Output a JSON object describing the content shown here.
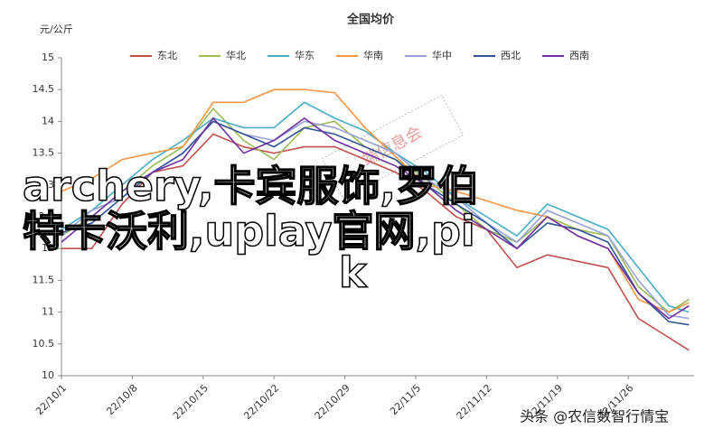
{
  "chart_data": {
    "type": "line",
    "title": "全国均价",
    "y_label": "元/公斤",
    "x": [
      0,
      3,
      6,
      9,
      12,
      15,
      18,
      21,
      24,
      27,
      30,
      33,
      36,
      39,
      42,
      45,
      48,
      51,
      54,
      57,
      60,
      62
    ],
    "xlim": [
      0,
      62.5
    ],
    "xticks": [
      {
        "value": 0,
        "label": "22/10/1"
      },
      {
        "value": 7,
        "label": "22/10/8"
      },
      {
        "value": 14,
        "label": "22/10/15"
      },
      {
        "value": 21,
        "label": "22/10/22"
      },
      {
        "value": 28,
        "label": "22/10/29"
      },
      {
        "value": 35,
        "label": "22/11/5"
      },
      {
        "value": 42,
        "label": "22/11/12"
      },
      {
        "value": 49,
        "label": "22/11/19"
      },
      {
        "value": 56,
        "label": "22/11/26"
      }
    ],
    "ylim": [
      10,
      15
    ],
    "yticks": [
      10,
      10.5,
      11,
      11.5,
      12,
      12.5,
      13,
      13.5,
      14,
      14.5,
      15
    ],
    "grid": false,
    "legend": "top",
    "series": [
      {
        "name": "东北",
        "color": "#c0504d",
        "values": [
          12.0,
          12.0,
          12.7,
          13.2,
          13.3,
          13.8,
          13.6,
          13.5,
          13.6,
          13.6,
          13.4,
          13.2,
          12.9,
          12.5,
          12.3,
          11.7,
          11.9,
          11.8,
          11.7,
          10.9,
          10.6,
          10.4
        ]
      },
      {
        "name": "华北",
        "color": "#9bbb59",
        "values": [
          12.2,
          12.5,
          12.9,
          13.3,
          13.6,
          14.2,
          13.7,
          13.4,
          13.9,
          14.0,
          13.6,
          13.4,
          13.1,
          12.7,
          12.3,
          12.1,
          12.5,
          12.3,
          12.2,
          11.4,
          11.0,
          11.2
        ]
      },
      {
        "name": "华东",
        "color": "#4bacc6",
        "values": [
          12.3,
          12.6,
          13.0,
          13.4,
          13.7,
          14.05,
          13.9,
          13.9,
          14.3,
          14.05,
          13.85,
          13.5,
          13.2,
          12.8,
          12.5,
          12.2,
          12.7,
          12.5,
          12.3,
          11.7,
          11.1,
          11.0
        ]
      },
      {
        "name": "华南",
        "color": "#f79646",
        "values": [
          12.9,
          13.1,
          13.4,
          13.5,
          13.6,
          14.3,
          14.3,
          14.5,
          14.5,
          14.45,
          13.9,
          13.45,
          13.0,
          12.9,
          12.75,
          12.6,
          12.5,
          12.2,
          12.0,
          11.2,
          11.0,
          11.15
        ]
      },
      {
        "name": "华中",
        "color": "#95a3d6",
        "values": [
          12.2,
          12.6,
          12.8,
          13.2,
          13.5,
          14.0,
          13.8,
          13.7,
          14.0,
          13.9,
          13.7,
          13.5,
          13.1,
          12.8,
          12.4,
          12.1,
          12.6,
          12.4,
          12.2,
          11.5,
          10.95,
          10.9
        ]
      },
      {
        "name": "西北",
        "color": "#2f5597",
        "values": [
          12.25,
          12.4,
          12.8,
          13.2,
          13.5,
          14.0,
          13.8,
          13.6,
          13.9,
          13.8,
          13.6,
          13.4,
          13.0,
          12.7,
          12.4,
          12.0,
          12.4,
          12.3,
          12.1,
          11.3,
          10.85,
          10.8
        ]
      },
      {
        "name": "西南",
        "color": "#7030a0",
        "values": [
          12.1,
          12.5,
          12.9,
          13.2,
          13.4,
          14.05,
          13.5,
          13.7,
          14.05,
          13.7,
          13.5,
          13.3,
          13.0,
          12.6,
          12.3,
          12.0,
          12.5,
          12.2,
          12.0,
          11.3,
          10.9,
          11.1
        ]
      }
    ]
  },
  "stamp": "端信息会",
  "overlay": [
    "archery,卡宾服饰,罗伯",
    "特卡沃利,uplay官网,pi",
    "k"
  ],
  "footer": "头条 @农信数智行情宝"
}
